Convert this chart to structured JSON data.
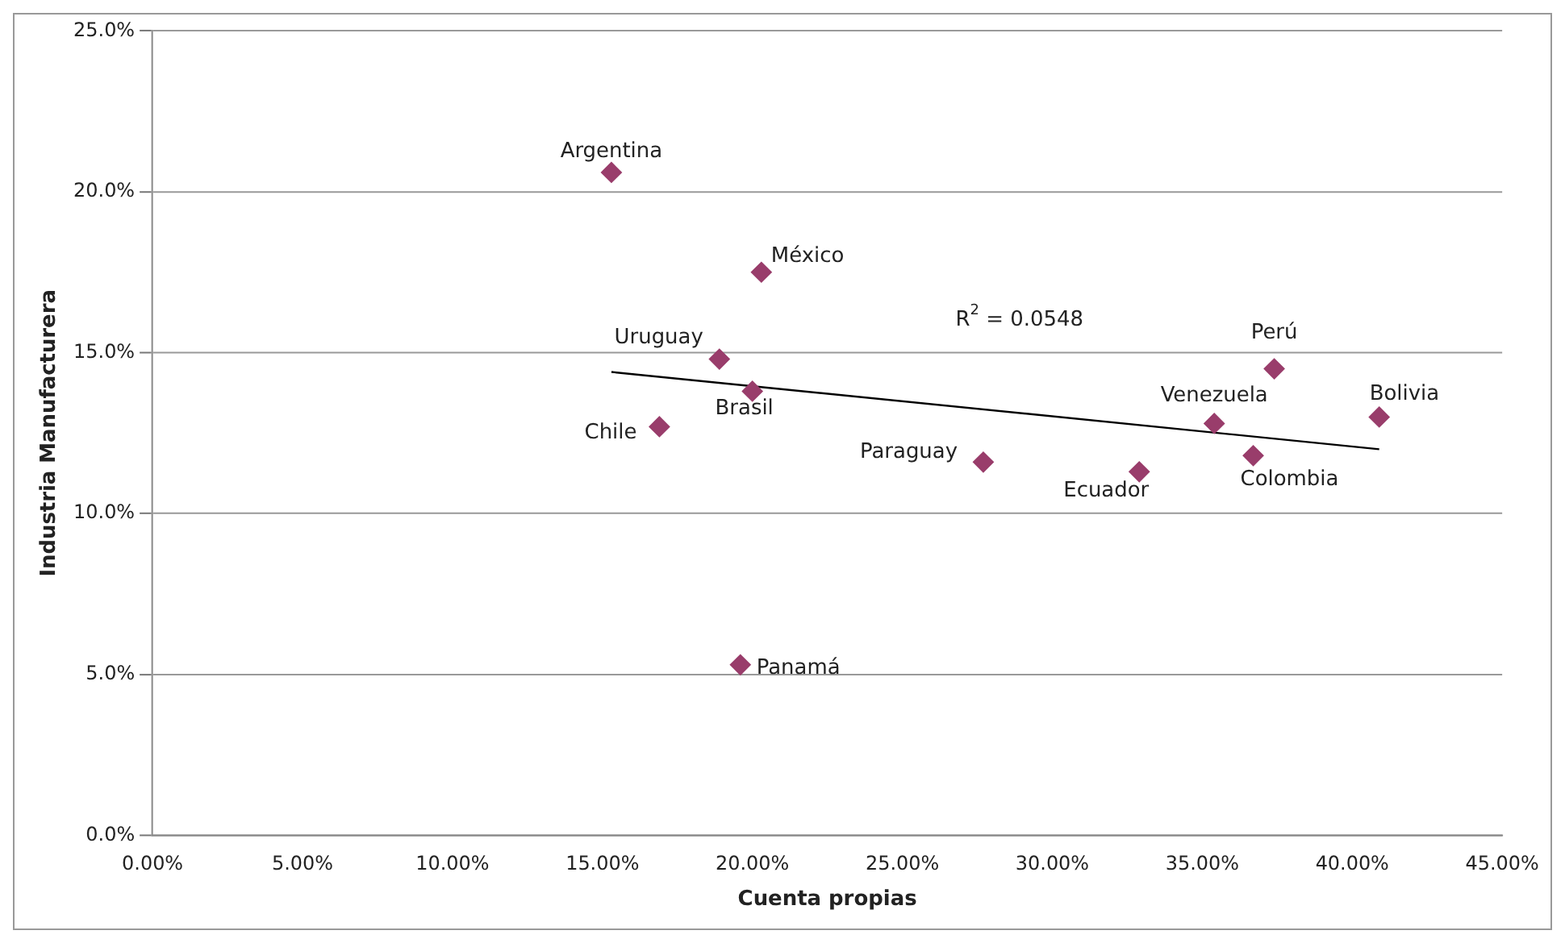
{
  "chart_data": {
    "type": "scatter",
    "xlabel": "Cuenta propias",
    "ylabel": "Industria Manufacturera",
    "xlim": [
      0,
      45
    ],
    "ylim": [
      0,
      25
    ],
    "xticks": [
      {
        "value": 0,
        "label": "0.00%"
      },
      {
        "value": 5,
        "label": "5.00%"
      },
      {
        "value": 10,
        "label": "10.00%"
      },
      {
        "value": 15,
        "label": "15.00%"
      },
      {
        "value": 20,
        "label": "20.00%"
      },
      {
        "value": 25,
        "label": "25.00%"
      },
      {
        "value": 30,
        "label": "30.00%"
      },
      {
        "value": 35,
        "label": "35.00%"
      },
      {
        "value": 40,
        "label": "40.00%"
      },
      {
        "value": 45,
        "label": "45.00%"
      }
    ],
    "yticks": [
      {
        "value": 0,
        "label": "0.0%"
      },
      {
        "value": 5,
        "label": "5.0%"
      },
      {
        "value": 10,
        "label": "10.0%"
      },
      {
        "value": 15,
        "label": "15.0%"
      },
      {
        "value": 20,
        "label": "20.0%"
      },
      {
        "value": 25,
        "label": "25.0%"
      }
    ],
    "grid": "y",
    "legend": false,
    "marker": "diamond",
    "series": [
      {
        "color": "#993d6b",
        "x": [
          15.3,
          20.3,
          18.9,
          20.0,
          16.9,
          19.6,
          27.7,
          32.9,
          35.4,
          36.7,
          37.4,
          40.9
        ],
        "values": [
          20.6,
          17.5,
          14.8,
          13.8,
          12.7,
          5.3,
          11.6,
          11.3,
          12.8,
          11.8,
          14.5,
          13.0
        ]
      },
      {
        "type": "line",
        "color": "#000000",
        "marker": "none",
        "x": [
          15.3,
          40.9
        ],
        "values": [
          14.4,
          12.0
        ]
      }
    ],
    "annotations": [
      {
        "text": "Argentina",
        "x": 15.3,
        "y": 20.6
      },
      {
        "text": "México",
        "x": 20.3,
        "y": 17.5
      },
      {
        "text": "Uruguay",
        "x": 18.9,
        "y": 14.8
      },
      {
        "text": "Brasil",
        "x": 20.0,
        "y": 13.8
      },
      {
        "text": "Chile",
        "x": 16.9,
        "y": 12.7
      },
      {
        "text": "Panamá",
        "x": 19.6,
        "y": 5.3
      },
      {
        "text": "Paraguay",
        "x": 27.7,
        "y": 11.6
      },
      {
        "text": "Ecuador",
        "x": 32.9,
        "y": 11.3
      },
      {
        "text": "Venezuela",
        "x": 35.4,
        "y": 12.8
      },
      {
        "text": "Colombia",
        "x": 36.7,
        "y": 11.8
      },
      {
        "text": "Perú",
        "x": 37.4,
        "y": 14.5
      },
      {
        "text": "Bolivia",
        "x": 40.9,
        "y": 13.0
      },
      "R$^{2}$ = 0.0548"
    ]
  }
}
